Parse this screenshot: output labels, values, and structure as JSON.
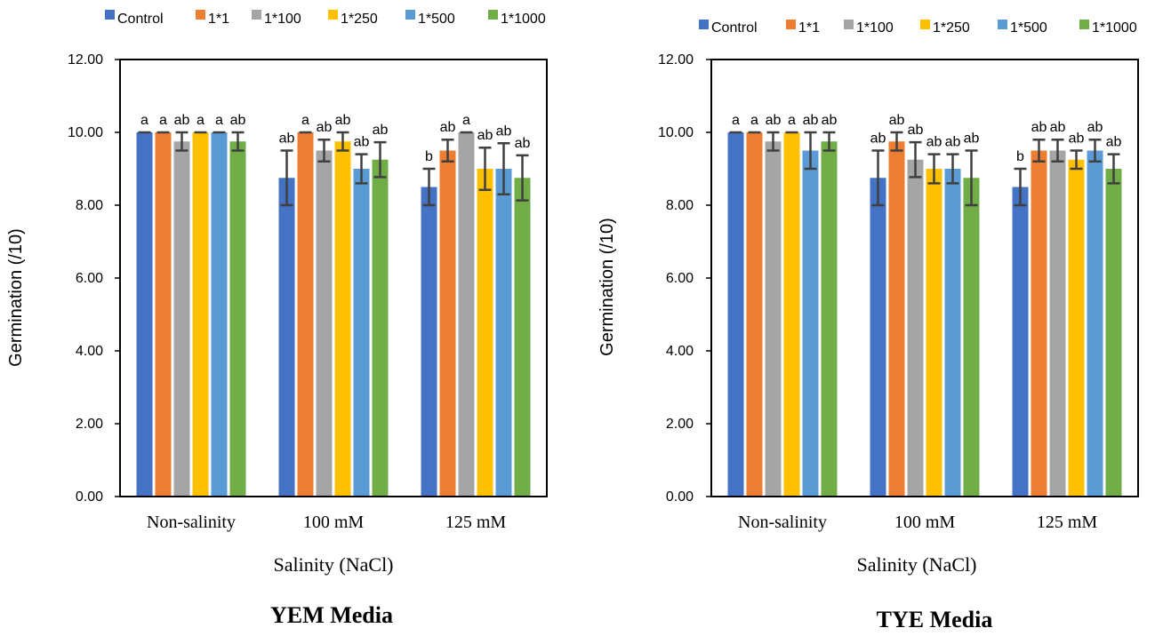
{
  "chart_data": [
    {
      "type": "bar",
      "title": "YEM Media",
      "xlabel": "Salinity (NaCl)",
      "ylabel": "Germination (/10)",
      "ylim": [
        0,
        12
      ],
      "yticks": [
        "0.00",
        "2.00",
        "4.00",
        "6.00",
        "8.00",
        "10.00",
        "12.00"
      ],
      "categories": [
        "Non-salinity",
        "100 mM",
        "125 mM"
      ],
      "legend_position": "top",
      "series": [
        {
          "name": "Control",
          "color": "#4472C4",
          "values": [
            10,
            8.75,
            8.5
          ],
          "errors": [
            0,
            0.75,
            0.5
          ],
          "labels": [
            "a",
            "ab",
            "b"
          ]
        },
        {
          "name": "1*1",
          "color": "#ED7D31",
          "values": [
            10,
            10,
            9.5
          ],
          "errors": [
            0,
            0,
            0.3
          ],
          "labels": [
            "a",
            "a",
            "ab"
          ]
        },
        {
          "name": "1*100",
          "color": "#A5A5A5",
          "values": [
            9.75,
            9.5,
            10
          ],
          "errors": [
            0.25,
            0.3,
            0
          ],
          "labels": [
            "ab",
            "ab",
            "a"
          ]
        },
        {
          "name": "1*250",
          "color": "#FFC000",
          "values": [
            10,
            9.75,
            9
          ],
          "errors": [
            0,
            0.25,
            0.58
          ],
          "labels": [
            "a",
            "ab",
            "ab"
          ]
        },
        {
          "name": "1*500",
          "color": "#5B9BD5",
          "values": [
            10,
            9,
            9
          ],
          "errors": [
            0,
            0.4,
            0.7
          ],
          "labels": [
            "a",
            "ab",
            "ab"
          ]
        },
        {
          "name": "1*1000",
          "color": "#70AD47",
          "values": [
            9.75,
            9.25,
            8.75
          ],
          "errors": [
            0.25,
            0.48,
            0.62
          ],
          "labels": [
            "ab",
            "ab",
            "ab"
          ]
        }
      ]
    },
    {
      "type": "bar",
      "title": "TYE Media",
      "xlabel": "Salinity (NaCl)",
      "ylabel": "Germination (/10)",
      "ylim": [
        0,
        12
      ],
      "yticks": [
        "0.00",
        "2.00",
        "4.00",
        "6.00",
        "8.00",
        "10.00",
        "12.00"
      ],
      "categories": [
        "Non-salinity",
        "100 mM",
        "125 mM"
      ],
      "legend_position": "top",
      "series": [
        {
          "name": "Control",
          "color": "#4472C4",
          "values": [
            10,
            8.75,
            8.5
          ],
          "errors": [
            0,
            0.75,
            0.5
          ],
          "labels": [
            "a",
            "ab",
            "b"
          ]
        },
        {
          "name": "1*1",
          "color": "#ED7D31",
          "values": [
            10,
            9.75,
            9.5
          ],
          "errors": [
            0,
            0.25,
            0.3
          ],
          "labels": [
            "a",
            "ab",
            "ab"
          ]
        },
        {
          "name": "1*100",
          "color": "#A5A5A5",
          "values": [
            9.75,
            9.25,
            9.5
          ],
          "errors": [
            0.25,
            0.48,
            0.3
          ],
          "labels": [
            "ab",
            "ab",
            "ab"
          ]
        },
        {
          "name": "1*250",
          "color": "#FFC000",
          "values": [
            10,
            9,
            9.25
          ],
          "errors": [
            0,
            0.4,
            0.25
          ],
          "labels": [
            "a",
            "ab",
            "ab"
          ]
        },
        {
          "name": "1*500",
          "color": "#5B9BD5",
          "values": [
            9.5,
            9,
            9.5
          ],
          "errors": [
            0.5,
            0.4,
            0.3
          ],
          "labels": [
            "ab",
            "ab",
            "ab"
          ]
        },
        {
          "name": "1*1000",
          "color": "#70AD47",
          "values": [
            9.75,
            8.75,
            9
          ],
          "errors": [
            0.25,
            0.75,
            0.4
          ],
          "labels": [
            "ab",
            "ab",
            "ab"
          ]
        }
      ]
    }
  ]
}
